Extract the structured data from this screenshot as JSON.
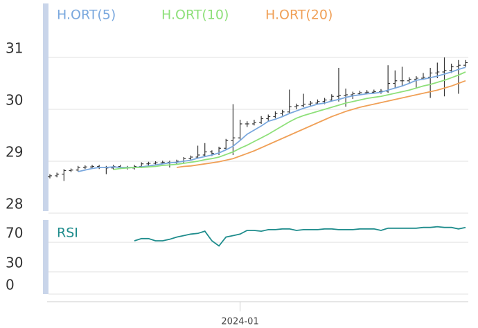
{
  "chart_data": [
    {
      "type": "ohlc",
      "color": "#333333",
      "open": [
        28.7,
        28.72,
        28.75,
        28.82,
        28.83,
        28.88,
        28.89,
        28.9,
        28.88,
        28.87,
        28.9,
        28.88,
        28.87,
        28.9,
        28.95,
        28.96,
        28.97,
        28.98,
        28.97,
        29.0,
        29.05,
        29.08,
        29.12,
        29.18,
        29.15,
        29.25,
        29.4,
        29.45,
        29.72,
        29.72,
        29.75,
        29.82,
        29.86,
        29.92,
        29.95,
        30.05,
        30.07,
        30.1,
        30.12,
        30.15,
        30.18,
        30.25,
        30.27,
        30.28,
        30.3,
        30.32,
        30.33,
        30.34,
        30.35,
        30.5,
        30.55,
        30.55,
        30.58,
        30.6,
        30.62,
        30.7,
        30.72,
        30.75,
        30.82,
        30.85
      ],
      "high": [
        28.75,
        28.78,
        28.85,
        28.86,
        28.91,
        28.92,
        28.93,
        28.93,
        28.91,
        28.93,
        28.93,
        28.91,
        28.93,
        28.98,
        28.99,
        29.0,
        29.01,
        29.01,
        29.03,
        29.08,
        29.11,
        29.3,
        29.35,
        29.21,
        29.28,
        29.43,
        30.1,
        29.8,
        29.77,
        29.8,
        29.87,
        29.9,
        29.96,
        29.99,
        30.38,
        30.11,
        30.3,
        30.16,
        30.19,
        30.22,
        30.29,
        30.8,
        30.4,
        30.34,
        30.36,
        30.37,
        30.38,
        30.39,
        30.85,
        30.75,
        30.82,
        30.62,
        30.64,
        30.7,
        30.8,
        30.9,
        31.0,
        30.88,
        30.95,
        30.95
      ],
      "low": [
        28.67,
        28.69,
        28.62,
        28.79,
        28.8,
        28.85,
        28.86,
        28.85,
        28.75,
        28.84,
        28.85,
        28.84,
        28.84,
        28.87,
        28.92,
        28.93,
        28.94,
        28.88,
        28.94,
        28.97,
        29.02,
        29.05,
        29.09,
        29.1,
        29.12,
        29.22,
        29.12,
        29.42,
        29.66,
        29.69,
        29.72,
        29.78,
        29.83,
        29.88,
        29.92,
        30.0,
        30.04,
        30.05,
        30.09,
        30.1,
        30.15,
        30.15,
        30.05,
        30.2,
        30.27,
        30.29,
        30.3,
        30.3,
        30.32,
        30.4,
        30.45,
        30.5,
        30.4,
        30.57,
        30.22,
        30.6,
        30.25,
        30.7,
        30.3,
        30.82
      ],
      "close": [
        28.72,
        28.75,
        28.82,
        28.83,
        28.88,
        28.89,
        28.9,
        28.88,
        28.87,
        28.9,
        28.88,
        28.87,
        28.9,
        28.95,
        28.96,
        28.97,
        28.98,
        28.97,
        29.0,
        29.05,
        29.08,
        29.12,
        29.18,
        29.15,
        29.25,
        29.4,
        29.45,
        29.72,
        29.72,
        29.75,
        29.82,
        29.86,
        29.92,
        29.95,
        30.05,
        30.07,
        30.1,
        30.12,
        30.15,
        30.18,
        30.25,
        30.27,
        30.28,
        30.3,
        30.32,
        30.33,
        30.34,
        30.35,
        30.5,
        30.55,
        30.55,
        30.58,
        30.6,
        30.62,
        30.7,
        30.72,
        30.75,
        30.82,
        30.85,
        30.9
      ],
      "series": [
        {
          "name": "H.ORT(5)",
          "color": "#7aa8de",
          "values": [
            null,
            null,
            null,
            null,
            28.8,
            28.83,
            28.86,
            28.88,
            28.88,
            28.89,
            28.88,
            28.88,
            28.88,
            28.89,
            28.91,
            28.93,
            28.95,
            28.97,
            28.98,
            29.0,
            29.02,
            29.06,
            29.09,
            29.12,
            29.16,
            29.22,
            29.29,
            29.4,
            29.52,
            29.6,
            29.68,
            29.77,
            29.81,
            29.86,
            29.92,
            29.97,
            30.02,
            30.06,
            30.1,
            30.12,
            30.16,
            30.19,
            30.23,
            30.26,
            30.28,
            30.3,
            30.31,
            30.33,
            30.37,
            30.41,
            30.45,
            30.5,
            30.56,
            30.58,
            30.61,
            30.64,
            30.68,
            30.72,
            30.77,
            30.81
          ]
        },
        {
          "name": "H.ORT(10)",
          "color": "#8ee07a",
          "values": [
            null,
            null,
            null,
            null,
            null,
            null,
            null,
            null,
            null,
            28.84,
            28.86,
            28.87,
            28.88,
            28.88,
            28.89,
            28.9,
            28.92,
            28.93,
            28.94,
            28.96,
            28.98,
            29.0,
            29.03,
            29.05,
            29.08,
            29.13,
            29.18,
            29.25,
            29.31,
            29.38,
            29.45,
            29.52,
            29.6,
            29.68,
            29.76,
            29.83,
            29.88,
            29.92,
            29.96,
            30.0,
            30.04,
            30.08,
            30.12,
            30.15,
            30.18,
            30.21,
            30.23,
            30.25,
            30.28,
            30.31,
            30.34,
            30.37,
            30.41,
            30.45,
            30.48,
            30.52,
            30.56,
            30.61,
            30.66,
            30.72
          ]
        },
        {
          "name": "H.ORT(20)",
          "color": "#f0a057",
          "values": [
            null,
            null,
            null,
            null,
            null,
            null,
            null,
            null,
            null,
            null,
            null,
            null,
            null,
            null,
            null,
            null,
            null,
            null,
            28.88,
            28.9,
            28.91,
            28.93,
            28.95,
            28.97,
            28.99,
            29.02,
            29.05,
            29.1,
            29.15,
            29.2,
            29.26,
            29.32,
            29.38,
            29.44,
            29.5,
            29.56,
            29.62,
            29.68,
            29.74,
            29.8,
            29.86,
            29.91,
            29.96,
            30.0,
            30.04,
            30.07,
            30.1,
            30.13,
            30.16,
            30.19,
            30.22,
            30.25,
            30.28,
            30.31,
            30.34,
            30.37,
            30.41,
            30.45,
            30.5,
            30.55
          ]
        }
      ],
      "ylim": [
        28,
        32
      ],
      "yticks": [
        28,
        29,
        30,
        31
      ],
      "grid": true
    },
    {
      "type": "line",
      "categories": [
        null,
        null,
        null,
        null,
        null,
        null,
        null,
        null,
        null,
        null,
        null,
        null,
        null,
        null,
        null,
        null,
        null,
        null,
        null,
        null,
        null,
        null,
        null,
        null,
        null,
        null,
        null,
        "2024-01",
        null,
        null,
        null,
        null,
        null,
        null,
        null,
        null,
        null,
        null,
        null,
        null,
        null,
        null,
        null,
        null,
        null,
        null,
        null,
        null,
        null,
        null,
        null,
        null,
        null,
        null,
        null,
        null,
        null,
        null,
        null,
        null
      ],
      "series": [
        {
          "name": "RSI",
          "color": "#1e8c8c",
          "values": [
            null,
            null,
            null,
            null,
            null,
            null,
            null,
            null,
            null,
            null,
            null,
            null,
            72,
            75,
            75,
            72,
            72,
            74,
            77,
            79,
            81,
            82,
            85,
            72,
            65,
            77,
            79,
            81,
            86,
            86,
            85,
            87,
            87,
            88,
            88,
            86,
            87,
            87,
            87,
            88,
            88,
            87,
            87,
            87,
            88,
            88,
            88,
            86,
            89,
            89,
            89,
            89,
            89,
            90,
            90,
            91,
            90,
            90,
            88,
            90
          ]
        }
      ],
      "ylim": [
        0,
        100
      ],
      "yticks": [
        0,
        30,
        70
      ],
      "grid": true
    }
  ]
}
